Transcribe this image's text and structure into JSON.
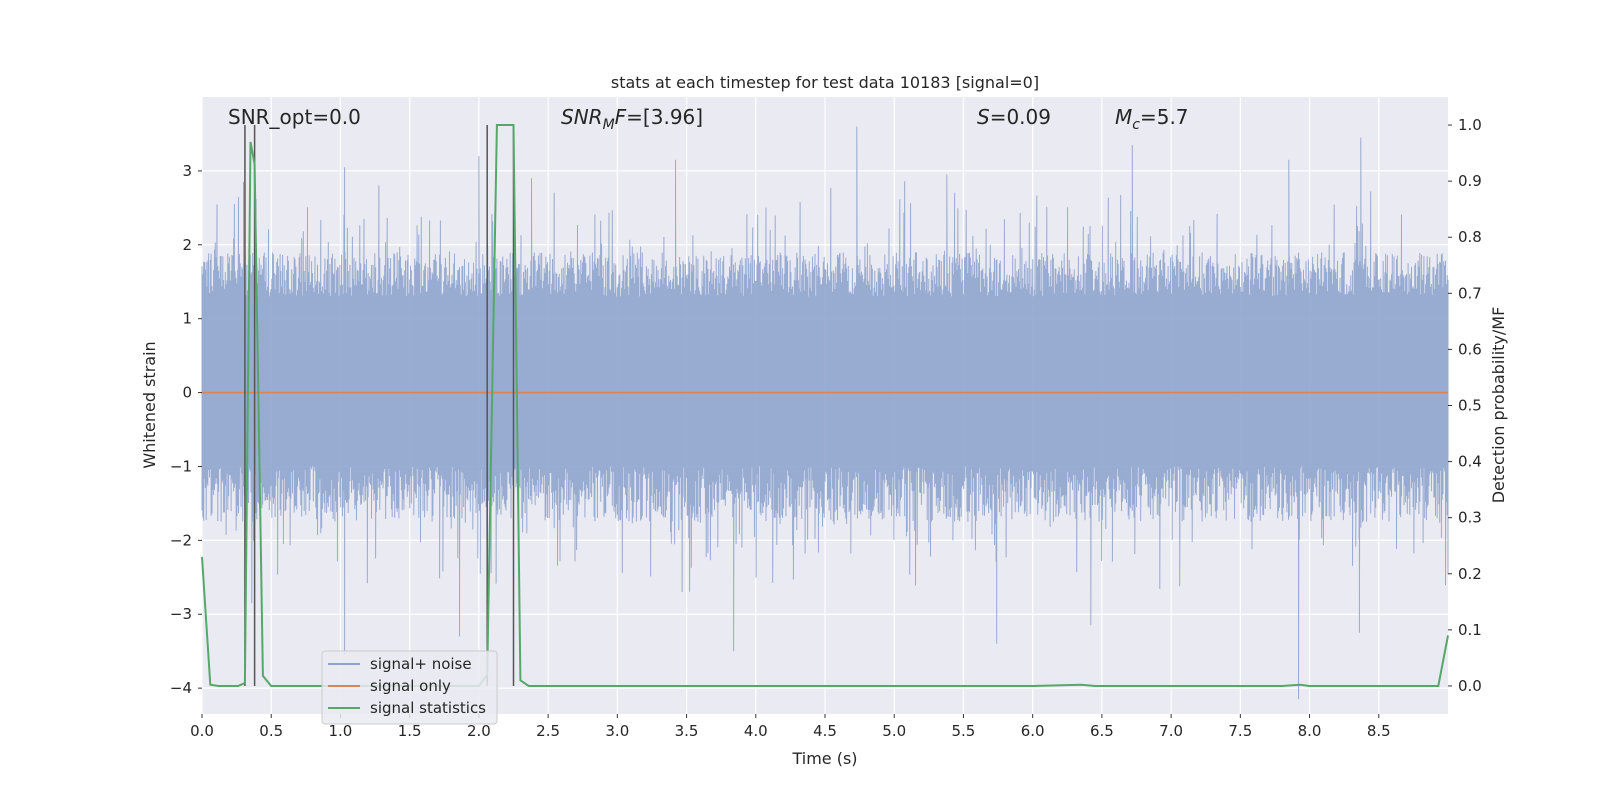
{
  "chart_data": {
    "type": "line",
    "title": "stats at each timestep for test data 10183 [signal=0]",
    "xlabel": "Time (s)",
    "ylabel": "Whitened strain",
    "ylabel_right": "Detection probability/MF",
    "xlim": [
      0,
      9.0
    ],
    "ylim": [
      -4.35,
      4.0
    ],
    "ylim_right": [
      -0.05,
      1.05
    ],
    "x_ticks": [
      0.0,
      0.5,
      1.0,
      1.5,
      2.0,
      2.5,
      3.0,
      3.5,
      4.0,
      4.5,
      5.0,
      5.5,
      6.0,
      6.5,
      7.0,
      7.5,
      8.0,
      8.5
    ],
    "x_tick_labels": [
      "0.0",
      "0.5",
      "1.0",
      "1.5",
      "2.0",
      "2.5",
      "3.0",
      "3.5",
      "4.0",
      "4.5",
      "5.0",
      "5.5",
      "6.0",
      "6.5",
      "7.0",
      "7.5",
      "8.0",
      "8.5"
    ],
    "y_ticks": [
      -4,
      -3,
      -2,
      -1,
      0,
      1,
      2,
      3
    ],
    "y_tick_labels": [
      "−4",
      "−3",
      "−2",
      "−1",
      "0",
      "1",
      "2",
      "3"
    ],
    "y_right_ticks": [
      0.0,
      0.1,
      0.2,
      0.3,
      0.4,
      0.5,
      0.6,
      0.7,
      0.8,
      0.9,
      1.0
    ],
    "y_right_tick_labels": [
      "0.0",
      "0.1",
      "0.2",
      "0.3",
      "0.4",
      "0.5",
      "0.6",
      "0.7",
      "0.8",
      "0.9",
      "1.0"
    ],
    "grid": true,
    "legend_position": "lower-left",
    "annotations": {
      "snr_opt": "SNR_opt=0.0",
      "snr_mf_main": "SNR",
      "snr_mf_sub": "M",
      "snr_mf_rest": "F=[3.96]",
      "s_main": "S",
      "s_rest": "=0.09",
      "mc_main": "M",
      "mc_sub": "c",
      "mc_rest": "=5.7"
    },
    "vertical_markers": [
      0.31,
      0.38,
      2.06,
      2.25
    ],
    "series": [
      {
        "name": "signal+ noise",
        "color": "#8fa4cd",
        "axis": "left",
        "noise_band_core": [
          -1.0,
          1.3
        ],
        "noise_peaks_up": [
          {
            "x": 0.3,
            "y": 2.85
          },
          {
            "x": 0.38,
            "y": 2.6
          },
          {
            "x": 1.03,
            "y": 3.05
          },
          {
            "x": 2.0,
            "y": 3.2
          },
          {
            "x": 2.38,
            "y": 2.9
          },
          {
            "x": 3.42,
            "y": 3.15
          },
          {
            "x": 4.73,
            "y": 3.6
          },
          {
            "x": 5.38,
            "y": 2.95
          },
          {
            "x": 6.72,
            "y": 3.35
          },
          {
            "x": 7.85,
            "y": 3.15
          },
          {
            "x": 8.37,
            "y": 3.45
          }
        ],
        "noise_peaks_down": [
          {
            "x": 0.36,
            "y": -2.85
          },
          {
            "x": 1.03,
            "y": -3.55
          },
          {
            "x": 1.86,
            "y": -3.3
          },
          {
            "x": 3.84,
            "y": -3.5
          },
          {
            "x": 5.74,
            "y": -3.4
          },
          {
            "x": 6.42,
            "y": -3.15
          },
          {
            "x": 7.92,
            "y": -4.15
          },
          {
            "x": 8.36,
            "y": -3.25
          }
        ]
      },
      {
        "name": "signal only",
        "color": "#dd8452",
        "axis": "left",
        "x": [
          0.0,
          9.0
        ],
        "y": [
          0.0,
          0.0
        ]
      },
      {
        "name": "signal statistics",
        "color": "#55a868",
        "axis": "right",
        "x": [
          0.0,
          0.06,
          0.12,
          0.2,
          0.26,
          0.31,
          0.35,
          0.38,
          0.44,
          0.5,
          0.6,
          1.0,
          1.5,
          2.0,
          2.06,
          2.13,
          2.25,
          2.3,
          2.36,
          2.4,
          2.5,
          3.0,
          4.0,
          5.0,
          6.0,
          6.35,
          6.45,
          7.0,
          7.8,
          7.93,
          8.0,
          8.5,
          8.93,
          9.0
        ],
        "y": [
          0.23,
          0.002,
          0.0,
          0.0,
          0.0,
          0.005,
          0.97,
          0.93,
          0.018,
          0.0,
          0.0,
          0.0,
          0.0,
          0.0,
          0.02,
          1.0,
          1.0,
          0.01,
          0.0,
          0.0,
          0.0,
          0.0,
          0.0,
          0.0,
          0.0,
          0.002,
          0.0,
          0.0,
          0.0,
          0.002,
          0.0,
          0.0,
          0.0,
          0.09
        ]
      }
    ]
  }
}
